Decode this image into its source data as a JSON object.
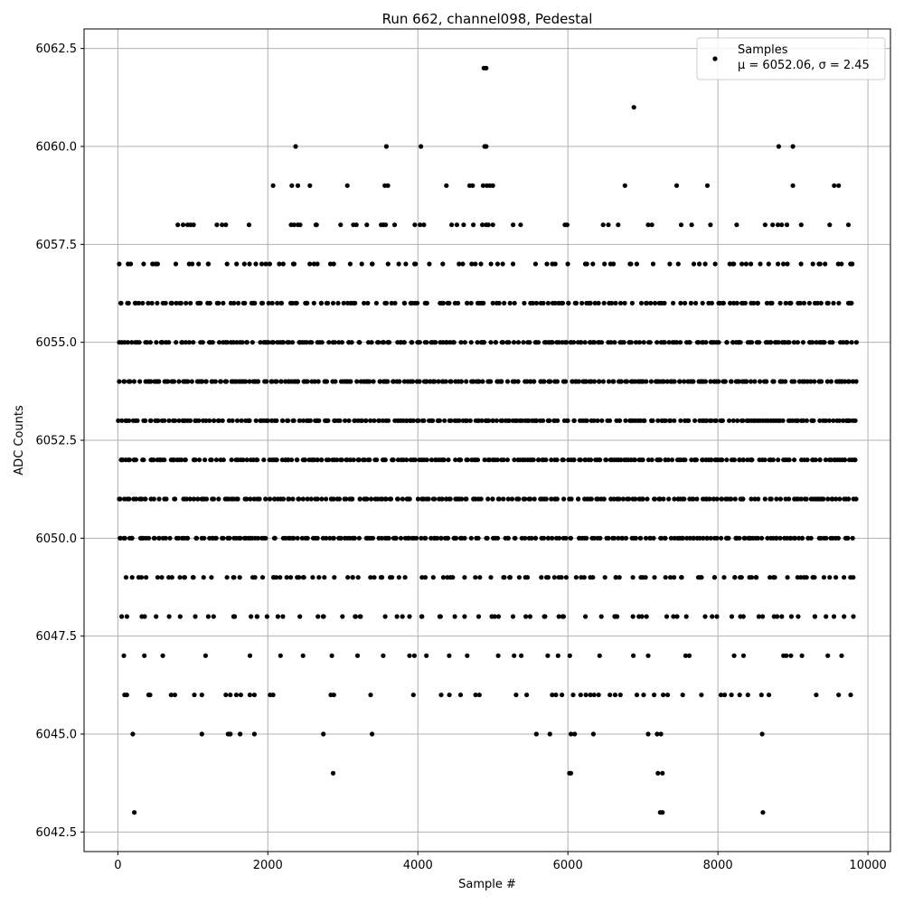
{
  "chart_data": {
    "type": "scatter",
    "title": "Run 662, channel098, Pedestal",
    "xlabel": "Sample #",
    "ylabel": "ADC Counts",
    "xlim": [
      -450,
      10300
    ],
    "ylim": [
      6042.0,
      6063.0
    ],
    "xticks": [
      0,
      2000,
      4000,
      6000,
      8000,
      10000
    ],
    "xtick_labels": [
      "0",
      "2000",
      "4000",
      "6000",
      "8000",
      "10000"
    ],
    "yticks": [
      6042.5,
      6045.0,
      6047.5,
      6050.0,
      6052.5,
      6055.0,
      6057.5,
      6060.0,
      6062.5
    ],
    "ytick_labels": [
      "6042.5",
      "6045.0",
      "6047.5",
      "6050.0",
      "6052.5",
      "6055.0",
      "6057.5",
      "6060.0",
      "6062.5"
    ],
    "grid": true,
    "legend": {
      "placement": "top-right",
      "entries": [
        "Samples",
        "μ = 6052.06, σ = 2.45"
      ]
    },
    "marker_color": "#000000",
    "levels": [
      {
        "y": 6043,
        "x": [
          220,
          7230,
          7260,
          8600
        ]
      },
      {
        "y": 6044,
        "x": [
          2870,
          6020,
          6040,
          7200,
          7260
        ]
      },
      {
        "y": 6045,
        "x": [
          200,
          1120,
          1470,
          1500,
          1630,
          1820,
          2740,
          3390,
          5580,
          5760,
          6040,
          6090,
          6340,
          7070,
          7190,
          7240,
          8590
        ]
      },
      {
        "y": 6046,
        "x": [
          90,
          120,
          410,
          430,
          710,
          760,
          1020,
          1120,
          1440,
          1500,
          1580,
          1640,
          1760,
          1820,
          2030,
          2070,
          2840,
          2880,
          3370,
          3940,
          4310,
          4420,
          4570,
          4770,
          4820,
          5310,
          5450,
          5790,
          5840,
          5920,
          6070,
          6170,
          6240,
          6300,
          6350,
          6410,
          6560,
          6630,
          6700,
          6920,
          7010,
          7150,
          7270,
          7330,
          7530,
          7780,
          8040,
          8090,
          8180,
          8290,
          8400,
          8580,
          8680,
          9310,
          9610,
          9770
        ]
      },
      {
        "y": 6047,
        "x": 22
      },
      {
        "y": 6048,
        "x": 55
      },
      {
        "y": 6049,
        "x": 80
      },
      {
        "y": 6050,
        "x": 160
      },
      {
        "y": 6051,
        "x": 155
      },
      {
        "y": 6052,
        "x": 175
      },
      {
        "y": 6053,
        "x": 170
      },
      {
        "y": 6054,
        "x": 185
      },
      {
        "y": 6055,
        "x": 150
      },
      {
        "y": 6056,
        "x": 110
      },
      {
        "y": 6057,
        "x": 60
      },
      {
        "y": 6058,
        "x": [
          800,
          870,
          930,
          970,
          1010,
          1320,
          1390,
          1440,
          1750,
          2310,
          2350,
          2400,
          2430,
          2640,
          2650,
          2970,
          3140,
          3180,
          3320,
          3510,
          3540,
          3570,
          3690,
          3960,
          4030,
          4080,
          4450,
          4520,
          4610,
          4740,
          4860,
          4910,
          4940,
          5000,
          5270,
          5370,
          5960,
          5990,
          6470,
          6540,
          6670,
          7070,
          7120,
          7510,
          7650,
          7900,
          8250,
          8630,
          8730,
          8800,
          8850,
          8920,
          9110,
          9490,
          9740
        ]
      },
      {
        "y": 6059,
        "x": [
          2070,
          2320,
          2400,
          2560,
          3060,
          3560,
          3600,
          4380,
          4690,
          4730,
          4870,
          4920,
          4960,
          5000,
          6760,
          7450,
          7860,
          9000,
          9550,
          9610
        ]
      },
      {
        "y": 6060,
        "x": [
          2370,
          3580,
          4040,
          4890,
          4910,
          8810,
          9000
        ]
      },
      {
        "y": 6061,
        "x": [
          6880
        ]
      },
      {
        "y": 6062,
        "x": [
          4880,
          4910
        ]
      }
    ]
  }
}
